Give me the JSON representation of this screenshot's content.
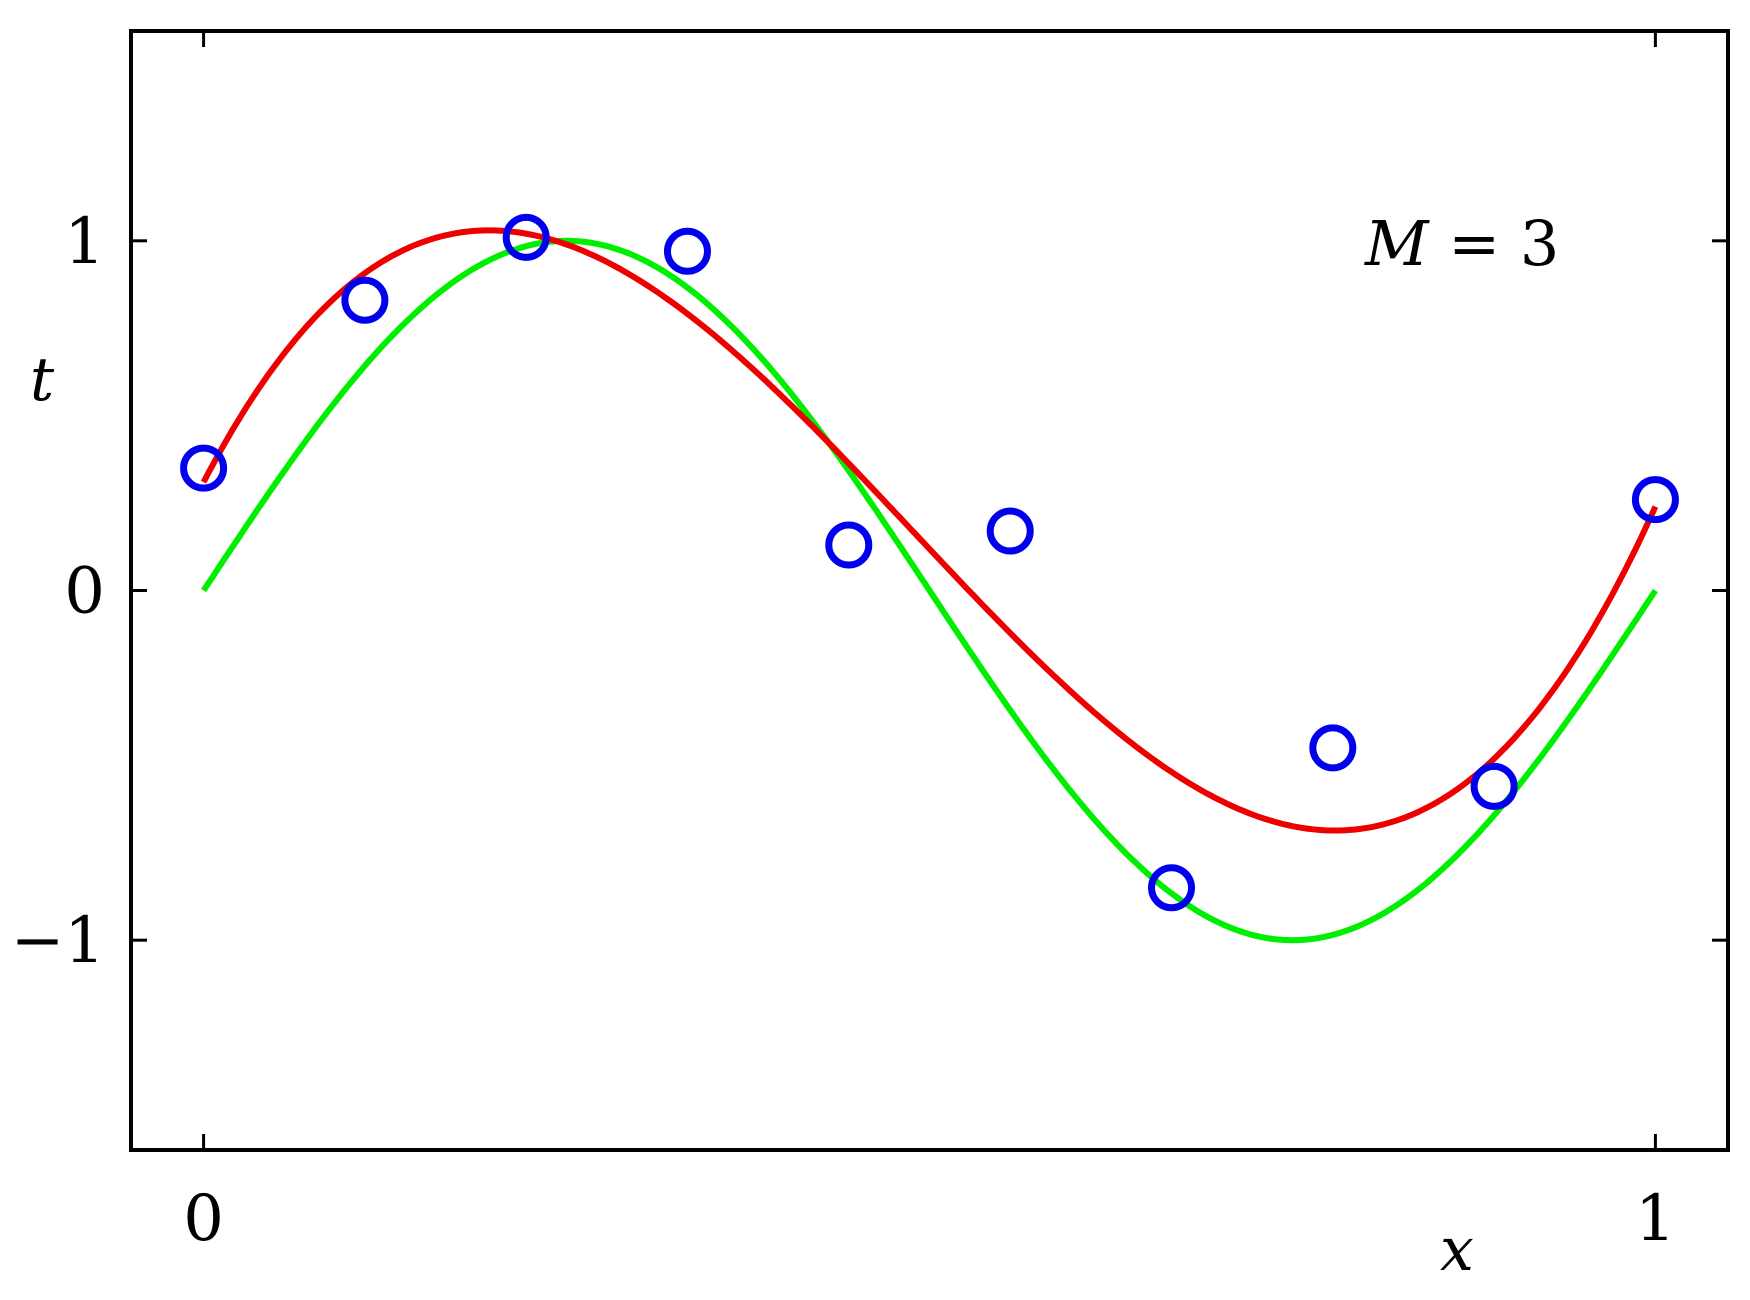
{
  "chart_data": {
    "type": "line",
    "title": "",
    "xlabel": "x",
    "ylabel": "t",
    "xlim": [
      -0.05,
      1.05
    ],
    "ylim": [
      -1.6,
      1.6
    ],
    "xticks": [
      0,
      1
    ],
    "xtick_labels": [
      "0",
      "1"
    ],
    "yticks": [
      -1,
      0,
      1
    ],
    "ytick_labels": [
      "−1",
      "0",
      "1"
    ],
    "grid": false,
    "annotation": {
      "text_var": "M",
      "text_rest": " = 3"
    },
    "series": [
      {
        "kind": "function",
        "function": "sin(2πx)",
        "color": "#00ee00"
      },
      {
        "kind": "polynomial",
        "degree": 3,
        "coefficients": [
          0.31,
          7.99,
          -25.43,
          17.37
        ],
        "color": "#ee0000"
      },
      {
        "kind": "scatter",
        "marker": "open-circle",
        "color": "#0000ee",
        "x": [
          0,
          0.1111,
          0.2222,
          0.3333,
          0.4444,
          0.5556,
          0.6667,
          0.7778,
          0.8889,
          1.0
        ],
        "y": [
          0.35,
          0.83,
          1.01,
          0.97,
          0.13,
          0.17,
          -0.85,
          -0.45,
          -0.56,
          0.26
        ]
      }
    ]
  }
}
